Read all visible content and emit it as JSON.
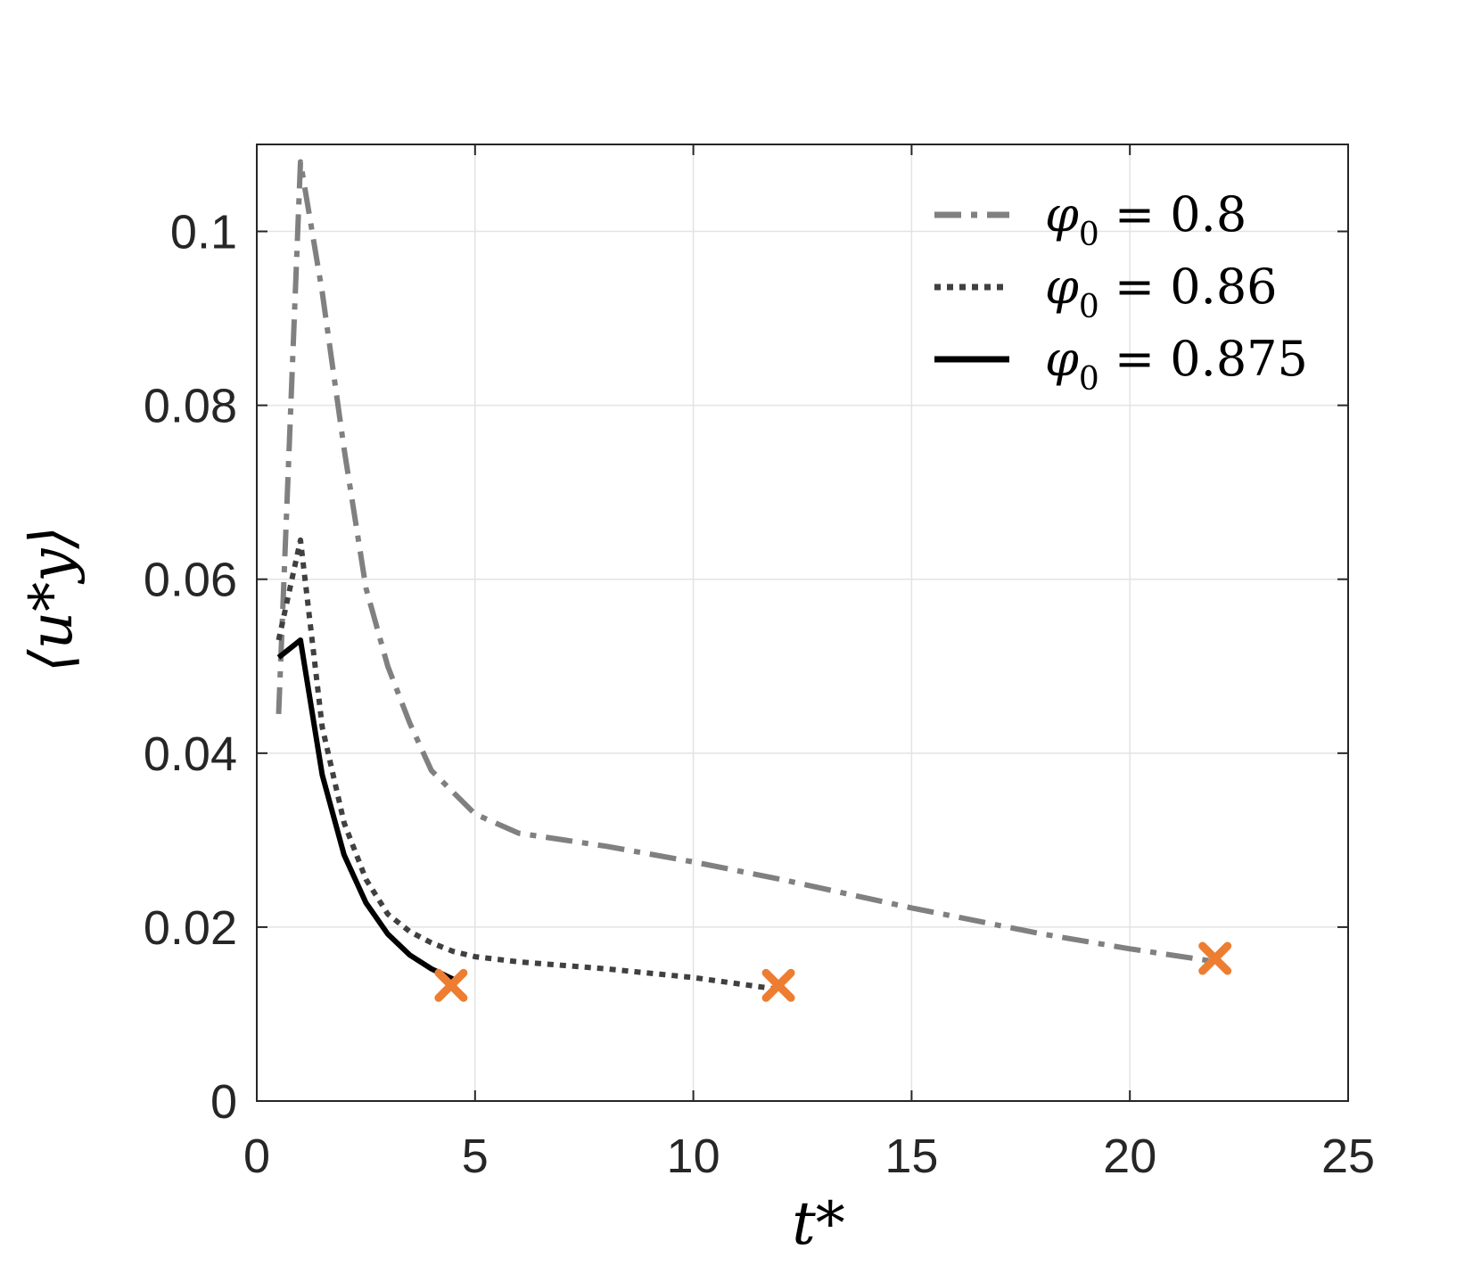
{
  "chart_data": {
    "type": "line",
    "xlabel": "t*",
    "ylabel": "⟨u*y⟩",
    "xlim": [
      0,
      25
    ],
    "ylim": [
      0,
      0.11
    ],
    "xticks": [
      0,
      5,
      10,
      15,
      20,
      25
    ],
    "xtick_labels": [
      "0",
      "5",
      "10",
      "15",
      "20",
      "25"
    ],
    "yticks": [
      0,
      0.02,
      0.04,
      0.06,
      0.08,
      0.1
    ],
    "ytick_labels": [
      "0",
      "0.02",
      "0.04",
      "0.06",
      "0.08",
      "0.1"
    ],
    "grid": true,
    "legend_position": "top-right",
    "series": [
      {
        "name": "φ0 = 0.8",
        "legend_symbol": "φ",
        "legend_sub": "0",
        "legend_value": " = 0.8",
        "style": "dashdot",
        "color": "#808080",
        "x": [
          0.5,
          1.0,
          1.5,
          2.0,
          2.5,
          3.0,
          3.5,
          4.0,
          5.0,
          6.0,
          8.0,
          10.0,
          12.0,
          15.0,
          18.0,
          20.0,
          22.0
        ],
        "y": [
          0.0445,
          0.108,
          0.093,
          0.075,
          0.059,
          0.05,
          0.0435,
          0.038,
          0.033,
          0.0308,
          0.0293,
          0.0275,
          0.0255,
          0.0222,
          0.0192,
          0.0175,
          0.016
        ]
      },
      {
        "name": "φ0 = 0.86",
        "legend_symbol": "φ",
        "legend_sub": "0",
        "legend_value": " = 0.86",
        "style": "dotted",
        "color": "#404040",
        "x": [
          0.5,
          1.0,
          1.5,
          2.0,
          2.5,
          3.0,
          3.5,
          4.0,
          4.5,
          5.0,
          6.0,
          8.0,
          10.0,
          12.0
        ],
        "y": [
          0.053,
          0.0645,
          0.043,
          0.032,
          0.0255,
          0.0215,
          0.0195,
          0.0182,
          0.0172,
          0.0166,
          0.016,
          0.0152,
          0.0142,
          0.0128
        ]
      },
      {
        "name": "φ0 = 0.875",
        "legend_symbol": "φ",
        "legend_sub": "0",
        "legend_value": " = 0.875",
        "style": "solid",
        "color": "#000000",
        "x": [
          0.5,
          1.0,
          1.5,
          2.0,
          2.5,
          3.0,
          3.5,
          4.0,
          4.5
        ],
        "y": [
          0.051,
          0.053,
          0.0375,
          0.0283,
          0.0228,
          0.0192,
          0.0168,
          0.0152,
          0.014
        ]
      }
    ],
    "end_markers": {
      "symbol": "x",
      "color": "#ED7D31",
      "points": [
        {
          "x": 4.45,
          "y": 0.0133
        },
        {
          "x": 11.95,
          "y": 0.0133
        },
        {
          "x": 21.95,
          "y": 0.0164
        }
      ]
    }
  }
}
